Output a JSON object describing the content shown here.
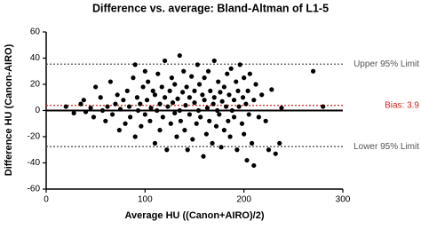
{
  "chart_data": {
    "type": "scatter",
    "title": "Difference vs. average: Bland-Altman of L1-5",
    "x_label": "Average HU ((Canon+AIRO)/2)",
    "y_label": "Difference HU (Canon-AIRO)",
    "xlim": [
      0,
      300
    ],
    "xticks": [
      0,
      100,
      200,
      300
    ],
    "ylim": [
      -60,
      60
    ],
    "yticks": [
      -60,
      -40,
      -20,
      0,
      20,
      40,
      60
    ],
    "color": "#000000",
    "x": [
      20,
      28,
      35,
      38,
      40,
      45,
      48,
      50,
      55,
      57,
      60,
      62,
      65,
      67,
      70,
      72,
      74,
      75,
      78,
      80,
      82,
      84,
      85,
      88,
      90,
      90,
      92,
      93,
      95,
      96,
      98,
      100,
      100,
      102,
      103,
      105,
      106,
      108,
      110,
      110,
      112,
      113,
      115,
      115,
      117,
      118,
      120,
      120,
      122,
      123,
      125,
      126,
      127,
      128,
      130,
      130,
      132,
      133,
      135,
      135,
      136,
      138,
      139,
      140,
      141,
      142,
      143,
      145,
      145,
      147,
      148,
      150,
      150,
      152,
      153,
      154,
      155,
      156,
      158,
      159,
      160,
      160,
      162,
      163,
      164,
      165,
      166,
      168,
      169,
      170,
      170,
      172,
      173,
      174,
      175,
      176,
      177,
      178,
      180,
      180,
      182,
      183,
      184,
      185,
      186,
      187,
      188,
      190,
      190,
      192,
      193,
      194,
      195,
      196,
      198,
      199,
      200,
      200,
      202,
      203,
      204,
      205,
      206,
      208,
      210,
      210,
      212,
      215,
      218,
      222,
      225,
      228,
      232,
      236,
      238,
      270,
      280
    ],
    "values": [
      3,
      -2,
      5,
      8,
      -1,
      2,
      -5,
      18,
      10,
      0,
      -8,
      3,
      22,
      -3,
      5,
      12,
      -15,
      1,
      8,
      -10,
      15,
      3,
      -5,
      25,
      35,
      -20,
      10,
      0,
      5,
      -12,
      18,
      30,
      -3,
      8,
      22,
      -8,
      2,
      15,
      -25,
      12,
      0,
      28,
      -15,
      5,
      18,
      -5,
      10,
      38,
      -30,
      3,
      15,
      -10,
      25,
      6,
      -2,
      20,
      -20,
      9,
      42,
      0,
      -8,
      14,
      30,
      -15,
      4,
      18,
      -30,
      10,
      -3,
      26,
      -22,
      6,
      15,
      -10,
      35,
      0,
      20,
      -5,
      12,
      -35,
      8,
      25,
      -18,
      2,
      30,
      -8,
      15,
      -25,
      5,
      10,
      38,
      -12,
      0,
      22,
      -3,
      14,
      -28,
      7,
      18,
      -15,
      3,
      28,
      -8,
      12,
      -20,
      32,
      0,
      8,
      -5,
      22,
      -30,
      15,
      3,
      35,
      -10,
      10,
      -18,
      25,
      5,
      -38,
      15,
      -3,
      28,
      -25,
      8,
      -42,
      20,
      -5,
      12,
      -8,
      -30,
      16,
      -33,
      -25,
      2,
      30,
      3
    ],
    "reference_lines": [
      {
        "label": "Upper 95% Limit",
        "value": 35.4,
        "color": "#555555"
      },
      {
        "label": "Bias: 3.9",
        "value": 3.9,
        "color": "#d9241c"
      },
      {
        "label": "Lower 95% Limit",
        "value": -27.6,
        "color": "#555555"
      }
    ]
  }
}
